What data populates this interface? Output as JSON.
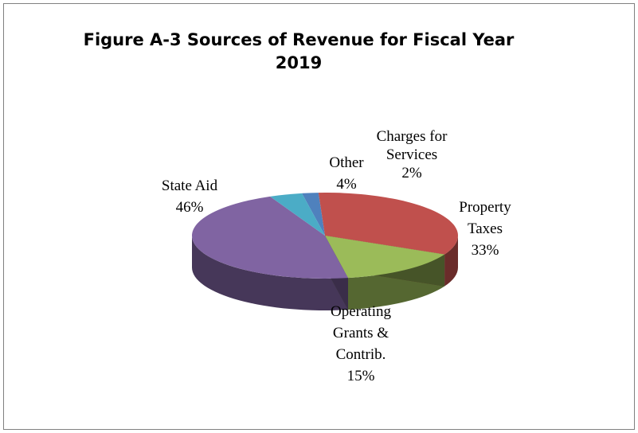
{
  "chart_data": {
    "type": "pie",
    "title_lines": [
      "Figure A-3 Sources of Revenue for Fiscal Year",
      "2019"
    ],
    "slices": [
      {
        "label_lines": [
          "Charges for",
          "Services"
        ],
        "value": 2,
        "value_label": "2%",
        "color": "#4f81bd"
      },
      {
        "label_lines": [
          "Property",
          "Taxes"
        ],
        "value": 33,
        "value_label": "33%",
        "color": "#c0504d"
      },
      {
        "label_lines": [
          "Operating",
          "Grants &",
          "Contrib."
        ],
        "value": 15,
        "value_label": "15%",
        "color": "#9bbb59"
      },
      {
        "label_lines": [
          "State Aid"
        ],
        "value": 46,
        "value_label": "46%",
        "color": "#8064a2"
      },
      {
        "label_lines": [
          "Other"
        ],
        "value": 4,
        "value_label": "4%",
        "color": "#4bacc6"
      }
    ],
    "legend": "none",
    "style": "3d-pie"
  }
}
